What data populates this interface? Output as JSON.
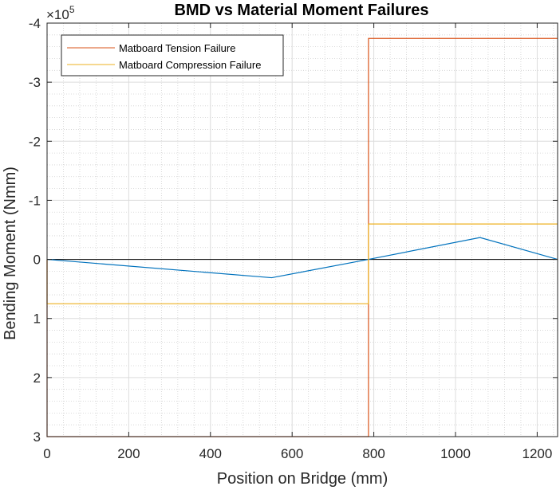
{
  "chart_data": {
    "type": "line",
    "title": "BMD vs Material Moment Failures",
    "xlabel": "Position on Bridge (mm)",
    "ylabel": "Bending Moment (Nmm)",
    "xlim": [
      0,
      1250
    ],
    "ylim": [
      -400000,
      300000
    ],
    "y_reversed": true,
    "y_exponent_label": {
      "base": "×10",
      "power": "5"
    },
    "x_ticks": [
      0,
      200,
      400,
      600,
      800,
      1000,
      1200
    ],
    "x_tick_labels": [
      "0",
      "200",
      "400",
      "600",
      "800",
      "1000",
      "1200"
    ],
    "y_ticks": [
      -400000,
      -300000,
      -200000,
      -100000,
      0,
      100000,
      200000,
      300000
    ],
    "y_tick_labels": [
      "-4",
      "-3",
      "-2",
      "-1",
      "0",
      "1",
      "2",
      "3"
    ],
    "grid": "on (major and minor)",
    "legend_position": "top-left",
    "series": [
      {
        "name": "",
        "color": "#0072BD",
        "x": [
          0,
          550,
          787,
          1060,
          1250
        ],
        "y": [
          0,
          31000,
          0,
          -37000,
          0
        ]
      },
      {
        "name": "Matboard Tension Failure",
        "color": "#D95319",
        "x": [
          0,
          0,
          787,
          787,
          1250
        ],
        "y": [
          0,
          300000,
          300000,
          -374000,
          -374000
        ]
      },
      {
        "name": "Matboard Compression Failure",
        "color": "#EDB120",
        "x": [
          0,
          0,
          787,
          787,
          1250
        ],
        "y": [
          0,
          75000,
          75000,
          -60000,
          -60000
        ]
      }
    ],
    "reference_lines": [
      {
        "axis": "y",
        "value": 0,
        "color": "#000000"
      }
    ]
  }
}
